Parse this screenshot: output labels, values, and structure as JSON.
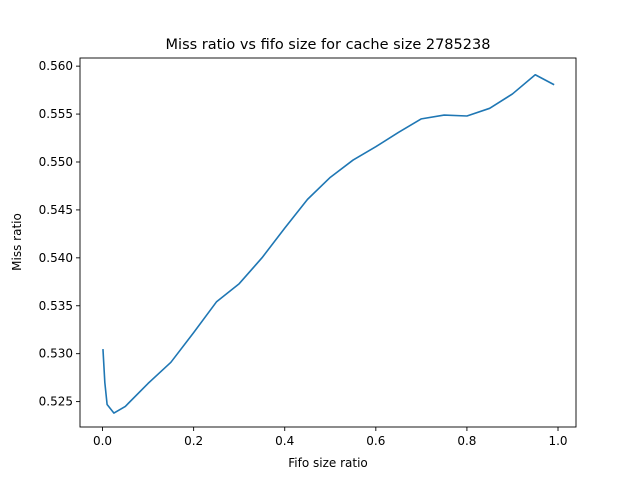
{
  "chart_data": {
    "type": "line",
    "title": "Miss ratio vs fifo size for cache size 2785238",
    "xlabel": "Fifo size ratio",
    "ylabel": "Miss ratio",
    "xlim": [
      -0.0495,
      1.0395
    ],
    "ylim": [
      0.52235,
      0.56085
    ],
    "xticks": [
      0.0,
      0.2,
      0.4,
      0.6,
      0.8,
      1.0
    ],
    "xtick_labels": [
      "0.0",
      "0.2",
      "0.4",
      "0.6",
      "0.8",
      "1.0"
    ],
    "yticks": [
      0.525,
      0.53,
      0.535,
      0.54,
      0.545,
      0.55,
      0.555,
      0.56
    ],
    "ytick_labels": [
      "0.525",
      "0.530",
      "0.535",
      "0.540",
      "0.545",
      "0.550",
      "0.555",
      "0.560"
    ],
    "grid": false,
    "legend": "none",
    "series": [
      {
        "color": "#1f77b4",
        "x": [
          0.001,
          0.005,
          0.01,
          0.025,
          0.05,
          0.1,
          0.15,
          0.2,
          0.25,
          0.3,
          0.35,
          0.4,
          0.45,
          0.5,
          0.55,
          0.6,
          0.65,
          0.7,
          0.75,
          0.8,
          0.85,
          0.9,
          0.95,
          0.99
        ],
        "y": [
          0.5304,
          0.527,
          0.5247,
          0.5238,
          0.5245,
          0.5269,
          0.5291,
          0.5322,
          0.5354,
          0.5373,
          0.54,
          0.5431,
          0.5461,
          0.5484,
          0.5502,
          0.5516,
          0.5531,
          0.5545,
          0.5549,
          0.5548,
          0.5556,
          0.5571,
          0.5591,
          0.5581
        ]
      }
    ]
  }
}
